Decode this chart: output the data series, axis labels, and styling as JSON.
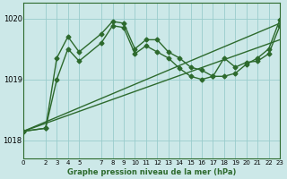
{
  "title": "Graphe pression niveau de la mer (hPa)",
  "background_color": "#cce8e8",
  "grid_color": "#99cccc",
  "line_color": "#2d6a2d",
  "xlim": [
    0,
    23
  ],
  "ylim": [
    1017.7,
    1020.25
  ],
  "yticks": [
    1018,
    1019,
    1020
  ],
  "xticks": [
    0,
    2,
    3,
    4,
    5,
    7,
    8,
    9,
    10,
    11,
    12,
    13,
    14,
    15,
    16,
    17,
    18,
    19,
    20,
    21,
    22,
    23
  ],
  "lines": [
    {
      "x": [
        0,
        2,
        3,
        4,
        5,
        7,
        8,
        9,
        10,
        11,
        12,
        13,
        14,
        15,
        16,
        17,
        18,
        19,
        20,
        21,
        22,
        23
      ],
      "y": [
        1018.15,
        1018.2,
        1019.35,
        1019.7,
        1019.45,
        1019.75,
        1019.95,
        1019.92,
        1019.5,
        1019.65,
        1019.65,
        1019.45,
        1019.35,
        1019.2,
        1019.15,
        1019.05,
        1019.05,
        1019.1,
        1019.25,
        1019.35,
        1019.5,
        1019.98
      ],
      "marker": "D",
      "markersize": 2.5,
      "linewidth": 1.0
    },
    {
      "x": [
        0,
        2,
        3,
        4,
        5,
        7,
        8,
        9,
        10,
        11,
        12,
        13,
        14,
        15,
        16,
        17,
        18,
        19,
        20,
        21,
        22,
        23
      ],
      "y": [
        1018.15,
        1018.2,
        1019.0,
        1019.5,
        1019.3,
        1019.6,
        1019.88,
        1019.85,
        1019.42,
        1019.55,
        1019.45,
        1019.35,
        1019.18,
        1019.05,
        1019.0,
        1019.05,
        1019.35,
        1019.2,
        1019.28,
        1019.3,
        1019.42,
        1019.88
      ],
      "marker": "D",
      "markersize": 2.5,
      "linewidth": 1.0
    },
    {
      "x": [
        0,
        23
      ],
      "y": [
        1018.15,
        1019.92
      ],
      "marker": null,
      "markersize": 0,
      "linewidth": 1.0
    },
    {
      "x": [
        0,
        23
      ],
      "y": [
        1018.15,
        1019.65
      ],
      "marker": null,
      "markersize": 0,
      "linewidth": 1.0
    }
  ]
}
